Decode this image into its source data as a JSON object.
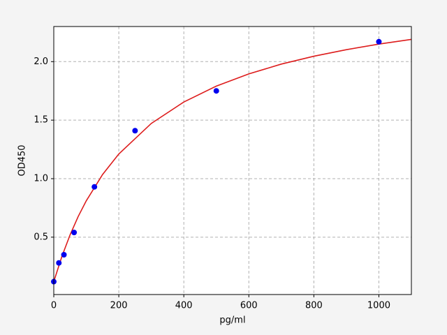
{
  "chart_data": {
    "type": "scatter",
    "x_label": "pg/ml",
    "y_label": "OD450",
    "xlim": [
      0,
      1100
    ],
    "ylim": [
      0.01,
      2.3
    ],
    "xticks": [
      0,
      200,
      400,
      600,
      800,
      1000
    ],
    "yticks": [
      0.5,
      {
        "value": 1.0,
        "label": "1.0"
      },
      1.5,
      {
        "value": 2.0,
        "label": "2.0"
      }
    ],
    "grid": true,
    "series": [
      {
        "type": "scatter",
        "color": "#0000ee",
        "x": [
          0,
          15.6,
          31.25,
          62.5,
          125,
          250,
          500,
          1000
        ],
        "values": [
          0.12,
          0.28,
          0.35,
          0.54,
          0.93,
          1.41,
          1.75,
          2.17
        ]
      },
      {
        "type": "line",
        "color": "#dd1c1c",
        "x": [
          0,
          25,
          50,
          75,
          100,
          150,
          200,
          300,
          400,
          500,
          600,
          700,
          800,
          900,
          1000,
          1100
        ],
        "values": [
          0.12,
          0.336,
          0.519,
          0.676,
          0.811,
          1.035,
          1.211,
          1.472,
          1.655,
          1.791,
          1.895,
          1.979,
          2.046,
          2.102,
          2.15,
          2.19
        ]
      }
    ]
  }
}
